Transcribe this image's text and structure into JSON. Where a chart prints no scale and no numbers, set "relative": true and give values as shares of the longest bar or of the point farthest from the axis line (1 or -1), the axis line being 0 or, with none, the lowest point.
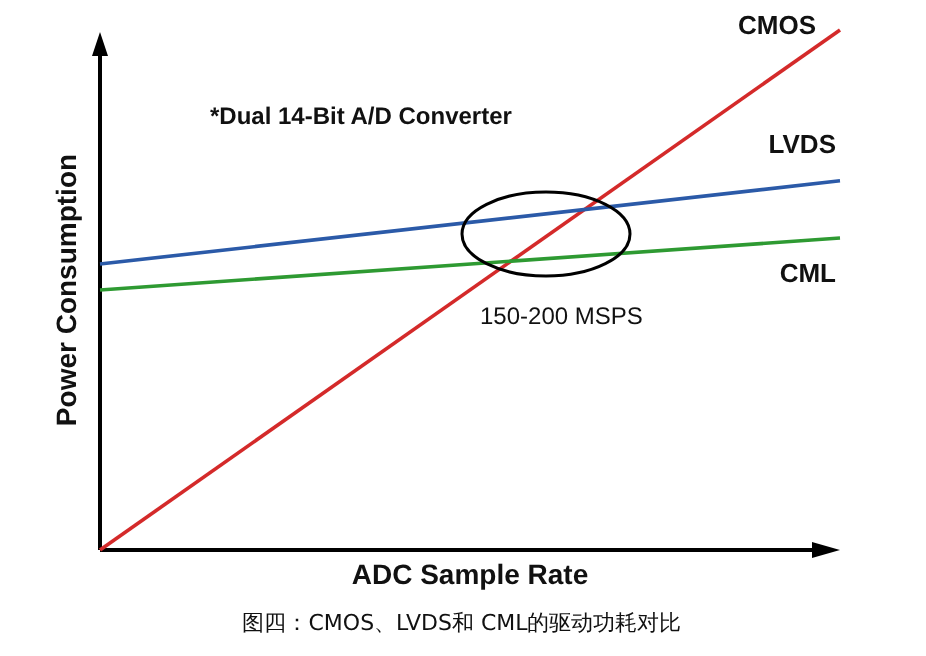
{
  "chart_data": {
    "type": "line",
    "relative": true,
    "xlabel": "ADC Sample Rate",
    "ylabel": "Power Consumption",
    "categories": [
      null,
      null
    ],
    "series": [
      {
        "name": "CMOS",
        "color": "#d42a2a",
        "values": [
          0,
          1
        ]
      },
      {
        "name": "LVDS",
        "color": "#2b5aa8",
        "values": [
          0.55,
          0.71
        ]
      },
      {
        "name": "CML",
        "color": "#2e9a32",
        "values": [
          0.5,
          0.6
        ]
      }
    ],
    "annotations": [
      "*Dual 14-Bit A/D Converter",
      "150-200 MSPS",
      "图四：CMOS、LVDS和 CML的驱动功耗对比"
    ],
    "legend": false,
    "grid": false,
    "marker": "none",
    "line_style": "solid"
  }
}
